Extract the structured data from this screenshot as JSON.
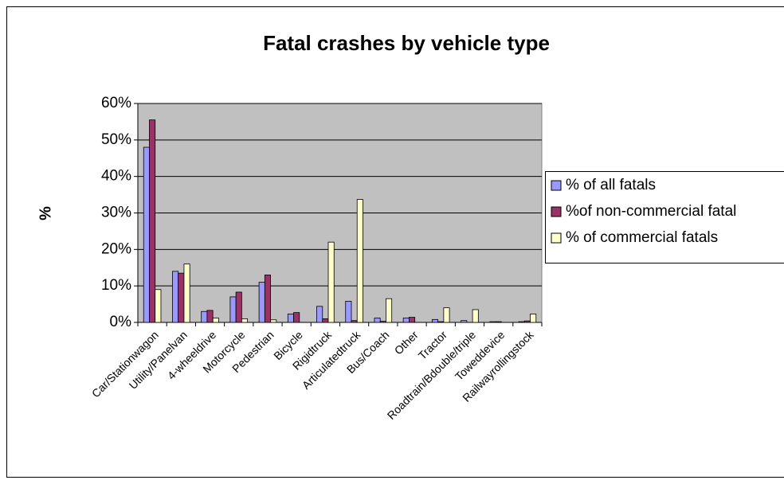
{
  "chart_data": {
    "type": "bar",
    "title": "Fatal crashes by vehicle type",
    "y_label": "%",
    "categories": [
      "Car/Stationwagon",
      "Utility/Panelvan",
      "4-wheeldrive",
      "Motorcycle",
      "Pedestrian",
      "Bicycle",
      "Rigidtruck",
      "Articulatedtruck",
      "Bus/Coach",
      "Other",
      "Tractor",
      "Roadtrain/Bdouble/triple",
      "Toweddevice",
      "Railwayrollingstock"
    ],
    "series": [
      {
        "name": "% of all fatals",
        "color": "#9999ff",
        "values": [
          48,
          14,
          3,
          7,
          11,
          2.3,
          4.4,
          5.8,
          1.2,
          1.2,
          0.8,
          0.5,
          0.2,
          0.2
        ]
      },
      {
        "name": "%of non-commercial fatal",
        "color": "#993366",
        "values": [
          55.5,
          13.5,
          3.3,
          8.3,
          13,
          2.7,
          1,
          0.5,
          0.3,
          1.4,
          0.2,
          0,
          0.2,
          0.4
        ]
      },
      {
        "name": "% of commercial fatals",
        "color": "#ffffcc",
        "values": [
          9,
          16,
          1.2,
          1,
          0.7,
          0,
          22,
          33.7,
          6.5,
          0,
          4,
          3.5,
          0,
          2.3
        ]
      }
    ],
    "ylim": [
      0,
      60
    ],
    "yticks": [
      {
        "value": 0,
        "label": "0%"
      },
      {
        "value": 10,
        "label": "10%"
      },
      {
        "value": 20,
        "label": "20%"
      },
      {
        "value": 30,
        "label": "30%"
      },
      {
        "value": 40,
        "label": "40%"
      },
      {
        "value": 50,
        "label": "50%"
      },
      {
        "value": 60,
        "label": "60%"
      }
    ],
    "grid": true,
    "legend": "right"
  }
}
